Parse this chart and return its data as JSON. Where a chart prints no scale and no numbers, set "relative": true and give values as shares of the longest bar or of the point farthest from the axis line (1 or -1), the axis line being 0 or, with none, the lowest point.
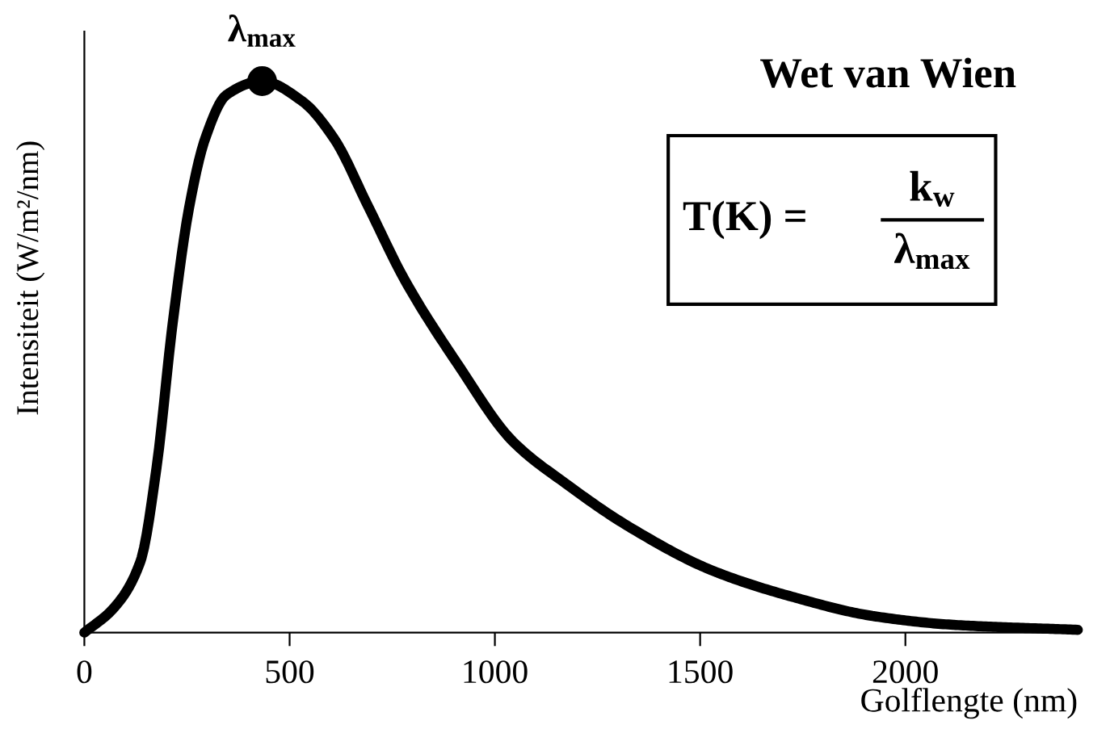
{
  "chart_data": {
    "type": "line",
    "title": "Wet van Wien",
    "xlabel": "Golflengte (nm)",
    "ylabel": "Intensiteit (W/m²/nm)",
    "relative": true,
    "xlim": [
      0,
      2420
    ],
    "xticks": [
      0,
      500,
      1000,
      1500,
      2000
    ],
    "grid": false,
    "series": [
      {
        "color": "#000000",
        "x": [
          0,
          71,
          137,
          176,
          215,
          255,
          294,
          346,
          433,
          530,
          609,
          688,
          780,
          911,
          1042,
          1173,
          1331,
          1528,
          1724,
          1921,
          2118,
          2420
        ],
        "values": [
          0,
          0.044,
          0.13,
          0.3,
          0.56,
          0.77,
          0.895,
          0.975,
          1.0,
          0.964,
          0.895,
          0.778,
          0.64,
          0.485,
          0.348,
          0.27,
          0.19,
          0.113,
          0.065,
          0.03,
          0.014,
          0.005
        ]
      },
      {
        "type": "scatter",
        "color": "#000000",
        "marker": "circle",
        "x": [
          433
        ],
        "values": [
          1.0
        ]
      }
    ],
    "annotations": [
      {
        "text": "λ$_{max}$",
        "x": 433,
        "y": 1.0
      },
      "T(K) =",
      "k$_{w}$",
      "λ$_{max}$"
    ]
  }
}
